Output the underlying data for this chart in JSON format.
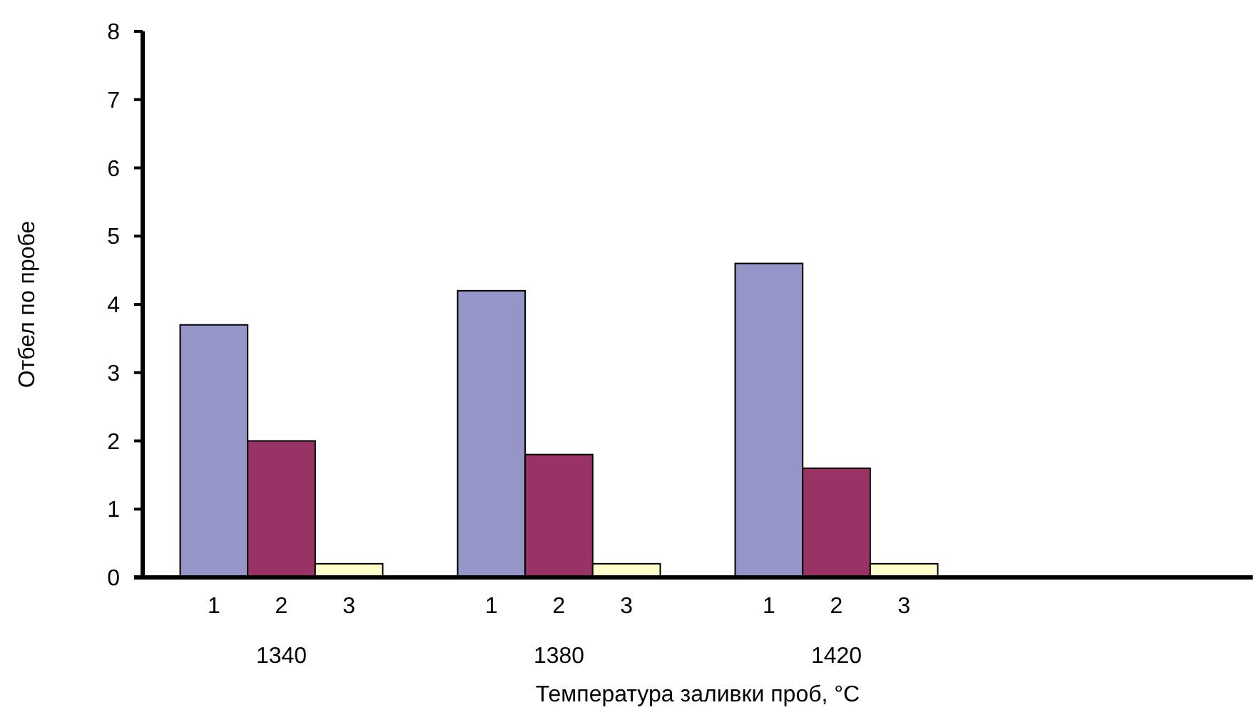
{
  "chart_data": {
    "type": "bar",
    "xlabel": "Температура заливки проб, °C",
    "ylabel": "Отбел по пробе",
    "categories": [
      "1340",
      "1380",
      "1420",
      null
    ],
    "series": [
      {
        "name": "1",
        "color": "#9595c8",
        "values": [
          3.7,
          4.2,
          4.6,
          null
        ]
      },
      {
        "name": "2",
        "color": "#993366",
        "values": [
          2.0,
          1.8,
          1.6,
          null
        ]
      },
      {
        "name": "3",
        "color": "#ffffcc",
        "values": [
          0.2,
          0.2,
          0.2,
          null
        ]
      }
    ],
    "ylim": [
      0,
      8
    ],
    "yticks": [
      0,
      1,
      2,
      3,
      4,
      5,
      6,
      7,
      8
    ],
    "grid": false
  }
}
